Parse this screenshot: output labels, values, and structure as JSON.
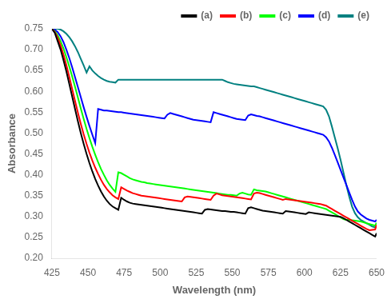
{
  "chart_data": {
    "type": "line",
    "title": "",
    "xlabel": "Wavelength (nm)",
    "ylabel": "Absorbance",
    "xlim": [
      425,
      650
    ],
    "ylim": [
      0.2,
      0.75
    ],
    "xticks": [
      425,
      450,
      475,
      500,
      525,
      550,
      575,
      600,
      625,
      650
    ],
    "yticks": [
      {
        "value": 0.2,
        "label": "0.20"
      },
      0.25,
      {
        "value": 0.3,
        "label": "0.30"
      },
      0.35,
      {
        "value": 0.4,
        "label": "0.40"
      },
      0.45,
      {
        "value": 0.5,
        "label": "0.50"
      },
      0.55,
      {
        "value": 0.6,
        "label": "0.60"
      },
      0.65,
      {
        "value": 0.7,
        "label": "0.70"
      },
      0.75
    ],
    "grid": false,
    "legend": "upper right",
    "x": [
      425,
      427,
      429,
      431,
      433,
      435,
      437,
      439,
      441,
      443,
      445,
      447,
      449,
      451,
      453,
      455,
      457,
      459,
      461,
      463,
      465,
      467,
      469,
      471,
      473,
      475,
      477,
      479,
      481,
      483,
      485,
      487,
      489,
      491,
      493,
      495,
      497,
      499,
      501,
      503,
      505,
      507,
      509,
      511,
      513,
      515,
      517,
      519,
      521,
      523,
      525,
      527,
      529,
      531,
      533,
      535,
      537,
      539,
      541,
      543,
      545,
      547,
      549,
      551,
      553,
      555,
      557,
      559,
      561,
      563,
      565,
      567,
      569,
      571,
      573,
      575,
      577,
      579,
      581,
      583,
      585,
      587,
      589,
      591,
      593,
      595,
      597,
      599,
      601,
      603,
      605,
      607,
      609,
      611,
      613,
      615,
      617,
      619,
      621,
      623,
      625,
      627,
      629,
      631,
      633,
      635,
      637,
      639,
      641,
      643,
      645,
      647,
      649,
      650
    ],
    "series": [
      {
        "name": "(a)",
        "color": "black",
        "values": [
          0.75,
          0.74,
          0.72,
          0.7,
          0.675,
          0.648,
          0.618,
          0.588,
          0.558,
          0.528,
          0.5,
          0.474,
          0.45,
          0.428,
          0.408,
          0.39,
          0.374,
          0.36,
          0.348,
          0.338,
          0.33,
          0.324,
          0.32,
          0.316,
          0.345,
          0.34,
          0.336,
          0.333,
          0.331,
          0.33,
          0.329,
          0.328,
          0.327,
          0.326,
          0.325,
          0.324,
          0.323,
          0.322,
          0.321,
          0.32,
          0.319,
          0.318,
          0.317,
          0.316,
          0.315,
          0.314,
          0.313,
          0.312,
          0.311,
          0.31,
          0.309,
          0.308,
          0.307,
          0.316,
          0.318,
          0.317,
          0.316,
          0.315,
          0.314,
          0.313,
          0.313,
          0.312,
          0.311,
          0.311,
          0.31,
          0.309,
          0.308,
          0.307,
          0.32,
          0.322,
          0.32,
          0.318,
          0.316,
          0.314,
          0.313,
          0.312,
          0.311,
          0.31,
          0.309,
          0.308,
          0.307,
          0.313,
          0.312,
          0.311,
          0.31,
          0.309,
          0.308,
          0.307,
          0.306,
          0.31,
          0.309,
          0.308,
          0.307,
          0.306,
          0.305,
          0.304,
          0.303,
          0.302,
          0.301,
          0.3,
          0.299,
          0.296,
          0.292,
          0.288,
          0.284,
          0.28,
          0.276,
          0.272,
          0.268,
          0.264,
          0.26,
          0.256,
          0.252,
          0.26
        ]
      },
      {
        "name": "(b)",
        "color": "red",
        "values": [
          0.75,
          0.742,
          0.728,
          0.71,
          0.688,
          0.663,
          0.635,
          0.606,
          0.577,
          0.549,
          0.522,
          0.497,
          0.474,
          0.453,
          0.434,
          0.417,
          0.402,
          0.388,
          0.376,
          0.366,
          0.358,
          0.351,
          0.346,
          0.342,
          0.37,
          0.366,
          0.362,
          0.359,
          0.356,
          0.354,
          0.352,
          0.35,
          0.349,
          0.348,
          0.347,
          0.346,
          0.345,
          0.344,
          0.343,
          0.342,
          0.341,
          0.34,
          0.339,
          0.338,
          0.337,
          0.336,
          0.346,
          0.348,
          0.347,
          0.346,
          0.345,
          0.344,
          0.343,
          0.342,
          0.341,
          0.34,
          0.35,
          0.355,
          0.353,
          0.351,
          0.35,
          0.349,
          0.348,
          0.347,
          0.346,
          0.345,
          0.344,
          0.343,
          0.342,
          0.341,
          0.355,
          0.357,
          0.356,
          0.354,
          0.352,
          0.35,
          0.348,
          0.346,
          0.344,
          0.342,
          0.34,
          0.342,
          0.341,
          0.34,
          0.339,
          0.338,
          0.337,
          0.336,
          0.335,
          0.334,
          0.333,
          0.332,
          0.331,
          0.33,
          0.328,
          0.326,
          0.322,
          0.318,
          0.314,
          0.31,
          0.306,
          0.302,
          0.298,
          0.294,
          0.29,
          0.286,
          0.282,
          0.278,
          0.274,
          0.27,
          0.267,
          0.268,
          0.269,
          0.28
        ]
      },
      {
        "name": "(c)",
        "color": "lime",
        "values": [
          0.75,
          0.744,
          0.734,
          0.72,
          0.703,
          0.682,
          0.66,
          0.636,
          0.611,
          0.585,
          0.559,
          0.534,
          0.51,
          0.488,
          0.467,
          0.448,
          0.43,
          0.414,
          0.4,
          0.387,
          0.376,
          0.367,
          0.359,
          0.406,
          0.404,
          0.4,
          0.396,
          0.392,
          0.389,
          0.387,
          0.385,
          0.383,
          0.382,
          0.38,
          0.379,
          0.378,
          0.377,
          0.376,
          0.375,
          0.374,
          0.373,
          0.372,
          0.371,
          0.37,
          0.369,
          0.368,
          0.367,
          0.366,
          0.365,
          0.364,
          0.363,
          0.362,
          0.361,
          0.36,
          0.359,
          0.358,
          0.357,
          0.356,
          0.355,
          0.354,
          0.353,
          0.352,
          0.352,
          0.351,
          0.35,
          0.355,
          0.357,
          0.355,
          0.353,
          0.352,
          0.365,
          0.363,
          0.362,
          0.361,
          0.36,
          0.358,
          0.356,
          0.354,
          0.352,
          0.35,
          0.348,
          0.346,
          0.344,
          0.342,
          0.34,
          0.338,
          0.336,
          0.334,
          0.332,
          0.33,
          0.328,
          0.326,
          0.324,
          0.322,
          0.32,
          0.318,
          0.314,
          0.31,
          0.306,
          0.302,
          0.298,
          0.294,
          0.292,
          0.292,
          0.291,
          0.29,
          0.289,
          0.288,
          0.286,
          0.284,
          0.282,
          0.28,
          0.278,
          0.285
        ]
      },
      {
        "name": "(d)",
        "color": "blue",
        "values": [
          0.75,
          0.748,
          0.742,
          0.732,
          0.718,
          0.7,
          0.68,
          0.658,
          0.634,
          0.61,
          0.586,
          0.562,
          0.539,
          0.517,
          0.496,
          0.476,
          0.558,
          0.556,
          0.554,
          0.554,
          0.553,
          0.552,
          0.551,
          0.55,
          0.55,
          0.549,
          0.548,
          0.547,
          0.546,
          0.545,
          0.544,
          0.543,
          0.542,
          0.541,
          0.54,
          0.539,
          0.538,
          0.537,
          0.536,
          0.535,
          0.544,
          0.548,
          0.546,
          0.544,
          0.542,
          0.54,
          0.538,
          0.536,
          0.534,
          0.532,
          0.531,
          0.53,
          0.529,
          0.528,
          0.527,
          0.526,
          0.55,
          0.548,
          0.546,
          0.544,
          0.542,
          0.54,
          0.538,
          0.536,
          0.534,
          0.533,
          0.532,
          0.531,
          0.542,
          0.545,
          0.543,
          0.541,
          0.54,
          0.538,
          0.536,
          0.534,
          0.532,
          0.53,
          0.528,
          0.526,
          0.524,
          0.522,
          0.52,
          0.518,
          0.516,
          0.514,
          0.512,
          0.51,
          0.508,
          0.506,
          0.504,
          0.502,
          0.5,
          0.498,
          0.496,
          0.49,
          0.48,
          0.465,
          0.448,
          0.43,
          0.412,
          0.394,
          0.376,
          0.358,
          0.34,
          0.324,
          0.312,
          0.305,
          0.3,
          0.295,
          0.292,
          0.29,
          0.288,
          0.292
        ]
      },
      {
        "name": "(e)",
        "color": "#008080",
        "values": [
          0.75,
          0.75,
          0.75,
          0.748,
          0.744,
          0.738,
          0.73,
          0.72,
          0.708,
          0.694,
          0.678,
          0.662,
          0.645,
          0.66,
          0.65,
          0.643,
          0.637,
          0.632,
          0.628,
          0.625,
          0.623,
          0.622,
          0.621,
          0.628,
          0.628,
          0.628,
          0.628,
          0.628,
          0.628,
          0.628,
          0.628,
          0.628,
          0.628,
          0.628,
          0.628,
          0.628,
          0.628,
          0.628,
          0.628,
          0.628,
          0.628,
          0.628,
          0.628,
          0.628,
          0.628,
          0.628,
          0.628,
          0.628,
          0.628,
          0.628,
          0.628,
          0.628,
          0.628,
          0.628,
          0.628,
          0.628,
          0.628,
          0.628,
          0.628,
          0.628,
          0.625,
          0.622,
          0.62,
          0.618,
          0.617,
          0.616,
          0.615,
          0.614,
          0.613,
          0.612,
          0.612,
          0.61,
          0.608,
          0.606,
          0.604,
          0.602,
          0.6,
          0.598,
          0.596,
          0.594,
          0.592,
          0.59,
          0.588,
          0.586,
          0.584,
          0.582,
          0.58,
          0.578,
          0.576,
          0.574,
          0.572,
          0.57,
          0.568,
          0.566,
          0.564,
          0.556,
          0.54,
          0.516,
          0.49,
          0.464,
          0.436,
          0.406,
          0.376,
          0.348,
          0.324,
          0.308,
          0.298,
          0.292,
          0.288,
          0.284,
          0.28,
          0.276,
          0.274,
          0.275
        ]
      }
    ]
  }
}
